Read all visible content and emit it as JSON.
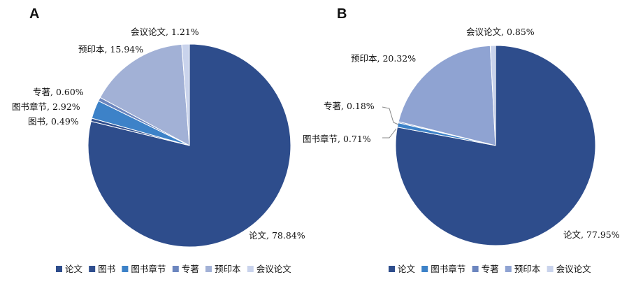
{
  "colors": {
    "论文": "#2E4D8C",
    "图书": "#2F4E8E",
    "图书章节": "#3D82C8",
    "专著": "#6C86BF",
    "预印本": "#A2B1D6",
    "会议论文": "#C9D3EC",
    "预印本_B": "#8FA3D2"
  },
  "chart_data": [
    {
      "type": "pie",
      "title": "A",
      "slices": [
        {
          "key": "论文",
          "name": "论文",
          "value": 78.84,
          "label": "论文, 78.84%"
        },
        {
          "key": "图书",
          "name": "图书",
          "value": 0.49,
          "label": "图书, 0.49%"
        },
        {
          "key": "图书章节",
          "name": "图书章节",
          "value": 2.92,
          "label": "图书章节, 2.92%"
        },
        {
          "key": "专著",
          "name": "专著",
          "value": 0.6,
          "label": "专著, 0.60%"
        },
        {
          "key": "预印本",
          "name": "预印本",
          "value": 15.94,
          "label": "预印本, 15.94%"
        },
        {
          "key": "会议论文",
          "name": "会议论文",
          "value": 1.21,
          "label": "会议论文, 1.21%"
        }
      ],
      "legend": [
        "论文",
        "图书",
        "图书章节",
        "专著",
        "预印本",
        "会议论文"
      ]
    },
    {
      "type": "pie",
      "title": "B",
      "slices": [
        {
          "key": "论文",
          "name": "论文",
          "value": 77.95,
          "label": "论文, 77.95%"
        },
        {
          "key": "图书章节",
          "name": "图书章节",
          "value": 0.71,
          "label": "图书章节, 0.71%"
        },
        {
          "key": "专著",
          "name": "专著",
          "value": 0.18,
          "label": "专著, 0.18%"
        },
        {
          "key": "预印本_B",
          "name": "预印本",
          "value": 20.32,
          "label": "预印本, 20.32%"
        },
        {
          "key": "会议论文",
          "name": "会议论文",
          "value": 0.85,
          "label": "会议论文, 0.85%"
        }
      ],
      "legend": [
        "论文",
        "图书章节",
        "专著",
        "预印本",
        "会议论文"
      ]
    }
  ]
}
